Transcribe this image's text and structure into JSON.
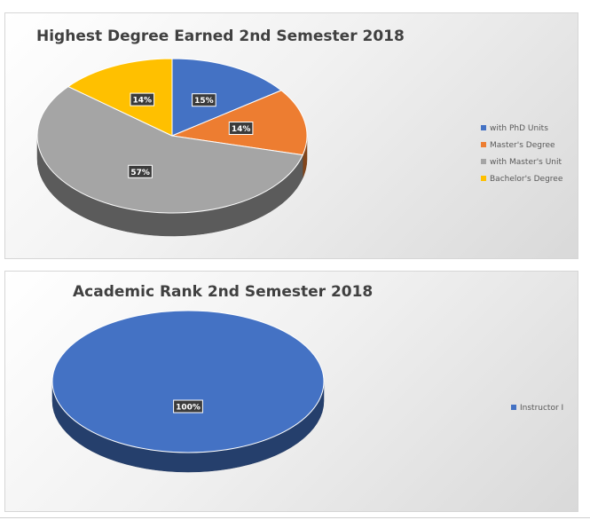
{
  "chart_data": [
    {
      "type": "pie",
      "title": "Highest Degree Earned 2nd Semester 2018",
      "categories": [
        "with PhD Units",
        "Master's Degree",
        "with Master's Unit",
        "Bachelor's Degree"
      ],
      "values": [
        15,
        14,
        57,
        14
      ],
      "labels": [
        "15%",
        "14%",
        "57%",
        "14%"
      ],
      "colors": [
        "#4472c4",
        "#ed7d31",
        "#a5a5a5",
        "#ffc000"
      ],
      "style": "3d",
      "legend": "right"
    },
    {
      "type": "pie",
      "title": "Academic Rank 2nd Semester 2018",
      "categories": [
        "Instructor I"
      ],
      "values": [
        100
      ],
      "labels": [
        "100%"
      ],
      "colors": [
        "#4472c4"
      ],
      "style": "3d",
      "legend": "right"
    }
  ]
}
